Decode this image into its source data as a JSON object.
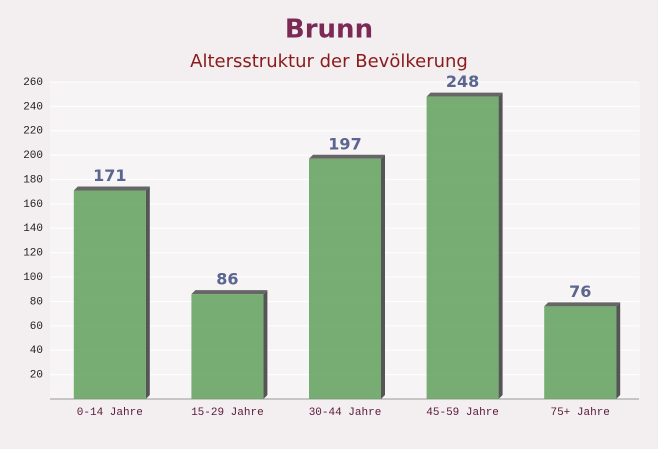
{
  "chart_data": {
    "type": "bar",
    "title": "Brunn",
    "subtitle": "Altersstruktur der Bevölkerung",
    "categories": [
      "0-14 Jahre",
      "15-29 Jahre",
      "30-44 Jahre",
      "45-59 Jahre",
      "75+ Jahre"
    ],
    "values": [
      171,
      86,
      197,
      248,
      76
    ],
    "color": "#68a565",
    "ylim": [
      0,
      260
    ],
    "yticks": [
      20,
      40,
      60,
      80,
      100,
      120,
      140,
      160,
      180,
      200,
      220,
      240,
      260
    ],
    "grid": true
  }
}
